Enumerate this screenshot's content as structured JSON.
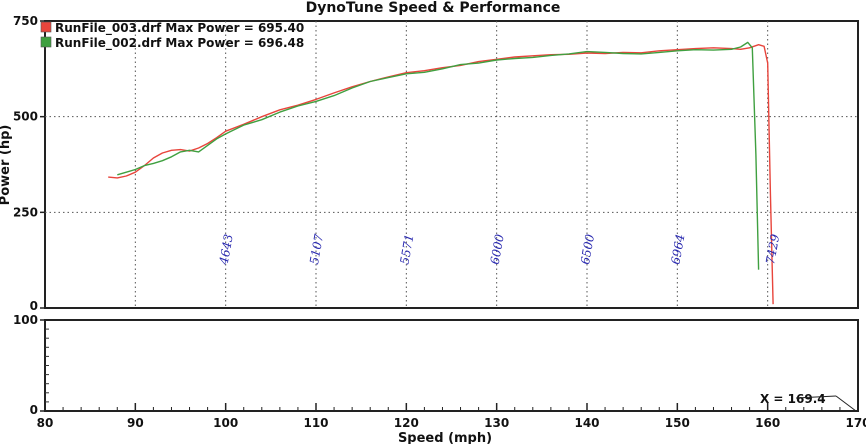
{
  "chart_data": {
    "type": "line",
    "title": "DynoTune Speed & Performance",
    "xlabel": "Speed (mph)",
    "ylabel": "Power (hp)",
    "xlim": [
      80,
      170
    ],
    "xticks": [
      "80",
      "90",
      "100",
      "110",
      "120",
      "130",
      "140",
      "150",
      "160",
      "170"
    ],
    "top_panel": {
      "ylim": [
        0,
        750
      ],
      "yticks": [
        "0",
        "250",
        "500",
        "750"
      ],
      "grid": true
    },
    "bottom_panel": {
      "ylim": [
        0,
        100
      ],
      "yticks": [
        "0",
        "100"
      ]
    },
    "legend": {
      "placement": "top-left",
      "entries": [
        "RunFile_003.drf Max Power = 695.40",
        "RunFile_002.drf Max Power = 696.48"
      ]
    },
    "series": [
      {
        "name": "RunFile_003.drf",
        "color": "#e8453c",
        "x": [
          87,
          88,
          89,
          90,
          91,
          92,
          93,
          94,
          95,
          96,
          97,
          98,
          99,
          100,
          102,
          104,
          106,
          108,
          110,
          112,
          114,
          116,
          118,
          120,
          122,
          124,
          126,
          128,
          130,
          132,
          134,
          136,
          138,
          140,
          142,
          144,
          146,
          148,
          150,
          152,
          154,
          156,
          157,
          158,
          159,
          159.6,
          160,
          160.3,
          160.6
        ],
        "y": [
          342,
          340,
          345,
          355,
          372,
          392,
          405,
          412,
          414,
          410,
          418,
          430,
          445,
          462,
          480,
          500,
          518,
          530,
          545,
          562,
          578,
          592,
          604,
          615,
          620,
          628,
          634,
          644,
          650,
          656,
          659,
          662,
          663,
          666,
          665,
          668,
          667,
          672,
          675,
          678,
          680,
          678,
          676,
          680,
          688,
          684,
          640,
          300,
          10
        ]
      },
      {
        "name": "RunFile_002.drf",
        "color": "#3fa040",
        "x": [
          88,
          89,
          90,
          91,
          92,
          93,
          94,
          95,
          96,
          97,
          98,
          99,
          100,
          102,
          104,
          106,
          108,
          110,
          112,
          114,
          116,
          118,
          120,
          122,
          124,
          126,
          128,
          130,
          132,
          134,
          136,
          138,
          140,
          142,
          144,
          146,
          148,
          150,
          152,
          154,
          156,
          157,
          157.8,
          158.3,
          158.7,
          159
        ],
        "y": [
          348,
          355,
          362,
          372,
          378,
          385,
          395,
          408,
          412,
          408,
          425,
          442,
          455,
          478,
          492,
          512,
          528,
          540,
          555,
          575,
          592,
          602,
          612,
          616,
          625,
          636,
          640,
          648,
          652,
          655,
          660,
          664,
          670,
          668,
          665,
          664,
          668,
          672,
          675,
          674,
          676,
          682,
          694,
          680,
          400,
          100
        ]
      }
    ],
    "rpm_annotations": [
      {
        "x": 100.5,
        "label": "4643"
      },
      {
        "x": 110.5,
        "label": "5107"
      },
      {
        "x": 120.5,
        "label": "5571"
      },
      {
        "x": 130.5,
        "label": "6000"
      },
      {
        "x": 140.5,
        "label": "6500"
      },
      {
        "x": 150.5,
        "label": "6964"
      },
      {
        "x": 161.0,
        "label": "7429"
      }
    ],
    "cursor_readout": "X = 169.4"
  }
}
